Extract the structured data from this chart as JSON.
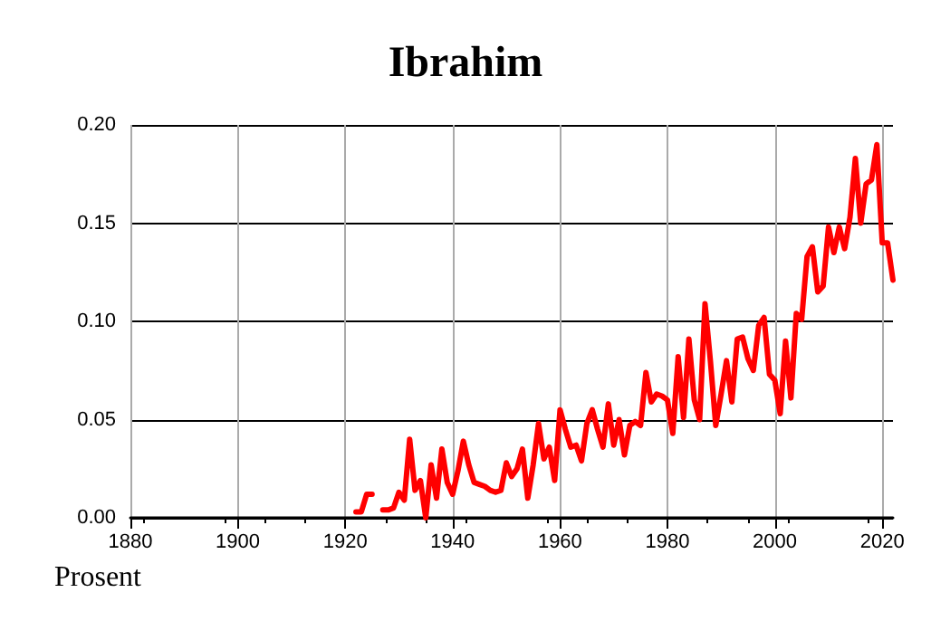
{
  "chart_data": {
    "type": "line",
    "title": "Ibrahim",
    "ylabel": "Prosent",
    "x": [
      1922,
      1923,
      1924,
      1925,
      1926,
      1927,
      1928,
      1929,
      1930,
      1931,
      1932,
      1933,
      1934,
      1935,
      1936,
      1937,
      1938,
      1939,
      1940,
      1941,
      1942,
      1943,
      1944,
      1945,
      1946,
      1947,
      1948,
      1949,
      1950,
      1951,
      1952,
      1953,
      1954,
      1955,
      1956,
      1957,
      1958,
      1959,
      1960,
      1961,
      1962,
      1963,
      1964,
      1965,
      1966,
      1967,
      1968,
      1969,
      1970,
      1971,
      1972,
      1973,
      1974,
      1975,
      1976,
      1977,
      1978,
      1979,
      1980,
      1981,
      1982,
      1983,
      1984,
      1985,
      1986,
      1987,
      1988,
      1989,
      1990,
      1991,
      1992,
      1993,
      1994,
      1995,
      1996,
      1997,
      1998,
      1999,
      2000,
      2001,
      2002,
      2003,
      2004,
      2005,
      2006,
      2007,
      2008,
      2009,
      2010,
      2011,
      2012,
      2013,
      2014,
      2015,
      2016,
      2017,
      2018,
      2019,
      2020,
      2021,
      2022
    ],
    "series": [
      {
        "color": "#ff0000",
        "values": [
          0.003,
          0.003,
          0.012,
          0.012,
          null,
          0.004,
          0.004,
          0.005,
          0.013,
          0.009,
          0.04,
          0.014,
          0.019,
          0.0,
          0.027,
          0.01,
          0.035,
          0.018,
          0.012,
          0.024,
          0.039,
          0.027,
          0.018,
          0.017,
          0.016,
          0.014,
          0.013,
          0.014,
          0.028,
          0.021,
          0.025,
          0.035,
          0.01,
          0.027,
          0.048,
          0.03,
          0.036,
          0.019,
          0.055,
          0.045,
          0.036,
          0.037,
          0.029,
          0.048,
          0.055,
          0.045,
          0.036,
          0.058,
          0.037,
          0.05,
          0.032,
          0.047,
          0.049,
          0.047,
          0.074,
          0.059,
          0.063,
          0.062,
          0.06,
          0.043,
          0.082,
          0.051,
          0.091,
          0.06,
          0.05,
          0.109,
          0.08,
          0.047,
          0.063,
          0.08,
          0.059,
          0.091,
          0.092,
          0.081,
          0.075,
          0.098,
          0.102,
          0.073,
          0.07,
          0.053,
          0.09,
          0.061,
          0.104,
          0.101,
          0.133,
          0.138,
          0.115,
          0.118,
          0.148,
          0.135,
          0.148,
          0.137,
          0.153,
          0.183,
          0.15,
          0.17,
          0.172,
          0.19,
          0.14,
          0.14,
          0.121
        ]
      }
    ],
    "xlim": [
      1880,
      2022
    ],
    "xticks": [
      1880,
      1900,
      1920,
      1940,
      1960,
      1980,
      2000,
      2020
    ],
    "ylim": [
      0,
      0.2
    ],
    "yticks": [
      {
        "value": 0,
        "label": "0.00"
      },
      0.05,
      {
        "value": 0.1,
        "label": "0.10"
      },
      0.15,
      {
        "value": 0.2,
        "label": "0.20"
      }
    ],
    "grid": true,
    "marker": "none",
    "line_style": "solid"
  }
}
